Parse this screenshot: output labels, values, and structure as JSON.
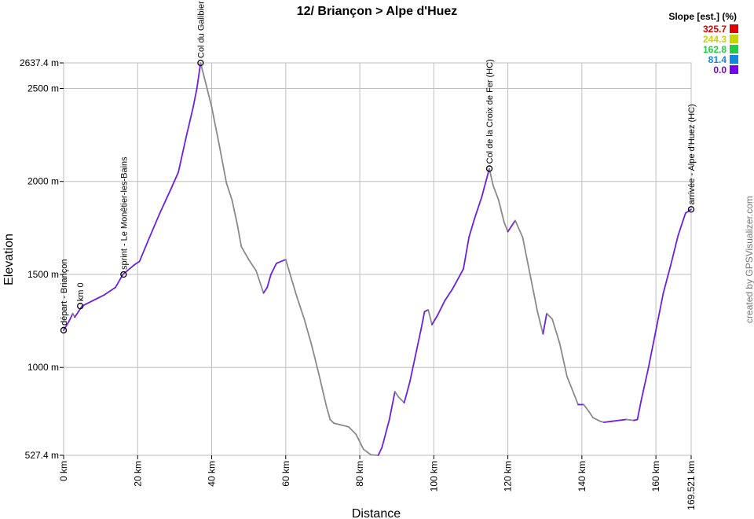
{
  "chart_data": {
    "type": "line",
    "title": "12/ Briançon > Alpe d'Huez",
    "xlabel": "Distance",
    "ylabel": "Elevation",
    "xlim": [
      0,
      169.521
    ],
    "ylim": [
      527.4,
      2637.4
    ],
    "grid": true,
    "x_ticks": [
      {
        "v": 0,
        "label": "0 km"
      },
      {
        "v": 20,
        "label": "20 km"
      },
      {
        "v": 40,
        "label": "40 km"
      },
      {
        "v": 60,
        "label": "60 km"
      },
      {
        "v": 80,
        "label": "80 km"
      },
      {
        "v": 100,
        "label": "100 km"
      },
      {
        "v": 120,
        "label": "120 km"
      },
      {
        "v": 140,
        "label": "140 km"
      },
      {
        "v": 160,
        "label": "160 km"
      },
      {
        "v": 169.521,
        "label": "169.521 km"
      }
    ],
    "y_ticks": [
      {
        "v": 527.4,
        "label": "527.4 m"
      },
      {
        "v": 1000,
        "label": "1000 m"
      },
      {
        "v": 1500,
        "label": "1500 m"
      },
      {
        "v": 2000,
        "label": "2000 m"
      },
      {
        "v": 2500,
        "label": "2500 m"
      },
      {
        "v": 2637.4,
        "label": "2637.4 m"
      }
    ],
    "series": [
      {
        "x": [
          0,
          1.5,
          2.5,
          3,
          4,
          5,
          8,
          11,
          14,
          16,
          19,
          20.5,
          23,
          26,
          29,
          31,
          33,
          35,
          36,
          37,
          38.5,
          40,
          42,
          44,
          45.5,
          47,
          48,
          50,
          52,
          54,
          55,
          56,
          57.5,
          60,
          61.5,
          63,
          65,
          67,
          69,
          71,
          72,
          73,
          75,
          77,
          79,
          81,
          82,
          83,
          85,
          86,
          88,
          89.5,
          90.5,
          92,
          93.5,
          95,
          96.5,
          97.5,
          98.5,
          99.5,
          101,
          103,
          105,
          108,
          109.5,
          111,
          113,
          115,
          116,
          117.5,
          119,
          120,
          121,
          122,
          124,
          125.5,
          127,
          128,
          129.5,
          130.5,
          132,
          134,
          136,
          138,
          139,
          140.5,
          142,
          143,
          145,
          146,
          148,
          150,
          152,
          154,
          155,
          156,
          158,
          160,
          162,
          164,
          166,
          168,
          169.521
        ],
        "y": [
          1200,
          1250,
          1290,
          1270,
          1300,
          1330,
          1360,
          1390,
          1430,
          1500,
          1550,
          1570,
          1690,
          1830,
          1960,
          2050,
          2230,
          2400,
          2500,
          2637.4,
          2520,
          2400,
          2200,
          1990,
          1900,
          1760,
          1650,
          1580,
          1520,
          1400,
          1430,
          1500,
          1560,
          1580,
          1480,
          1380,
          1260,
          1120,
          960,
          790,
          720,
          700,
          690,
          680,
          640,
          560,
          545,
          530,
          527.4,
          570,
          720,
          870,
          840,
          810,
          920,
          1060,
          1200,
          1300,
          1310,
          1230,
          1280,
          1360,
          1420,
          1530,
          1700,
          1800,
          1920,
          2069,
          1980,
          1900,
          1780,
          1730,
          1760,
          1790,
          1700,
          1550,
          1400,
          1300,
          1180,
          1290,
          1260,
          1130,
          950,
          850,
          800,
          800,
          760,
          730,
          710,
          705,
          710,
          715,
          720,
          715,
          720,
          820,
          1000,
          1200,
          1400,
          1550,
          1710,
          1830,
          1850
        ]
      }
    ],
    "waypoints": [
      {
        "x": 0,
        "y": 1200,
        "label": "départ - Briançon"
      },
      {
        "x": 4.5,
        "y": 1330,
        "label": "km 0"
      },
      {
        "x": 16.2,
        "y": 1500,
        "label": "sprint - Le Monêtier-les-Bains"
      },
      {
        "x": 37,
        "y": 2637.4,
        "label": "Col du Galibier (HC)"
      },
      {
        "x": 115,
        "y": 2069,
        "label": "Col de la Croix de Fer (HC)"
      },
      {
        "x": 169.521,
        "y": 1850,
        "label": "arrivée - Alpe d'Huez (HC)"
      }
    ],
    "legend": {
      "title": "Slope [est.] (%)",
      "placement": "top-right",
      "items": [
        {
          "label": "325.7",
          "color": "#e00000"
        },
        {
          "label": "244.3",
          "color": "#c8d400"
        },
        {
          "label": "162.8",
          "color": "#22cc44"
        },
        {
          "label": "81.4",
          "color": "#1188dd"
        },
        {
          "label": "0.0",
          "color": "#7700ee"
        }
      ]
    },
    "colors": {
      "uphill": "#6a20e0",
      "downhill": "#8a8a8a",
      "grid": "#bfbfbf",
      "waypoint": "#000000"
    }
  },
  "credit": "created by GPSVisualizer.com"
}
